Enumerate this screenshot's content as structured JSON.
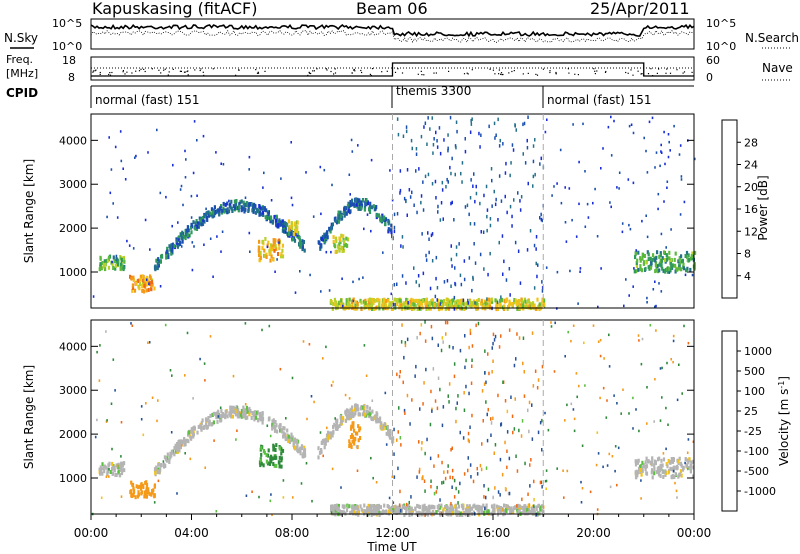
{
  "header": {
    "station": "Kapuskasing (fitACF)",
    "beam": "Beam 06",
    "date": "25/Apr/2011"
  },
  "noise_panel": {
    "left_label": "N.Sky",
    "right_label": "N.Search",
    "y_ticks": [
      "10^5",
      "10^0"
    ]
  },
  "freq_panel": {
    "left_label_1": "Freq.",
    "left_label_2": "[MHz]",
    "right_label": "Nave",
    "left_ticks": [
      "18",
      "8"
    ],
    "right_ticks": [
      "60",
      "0"
    ]
  },
  "cpid_panel": {
    "left_label": "CPID",
    "segments": [
      {
        "label": "normal (fast) 151",
        "start_h": 0,
        "end_h": 12
      },
      {
        "label": "themis 3300",
        "start_h": 12,
        "end_h": 18
      },
      {
        "label": "normal (fast) 151",
        "start_h": 18,
        "end_h": 24
      }
    ]
  },
  "colorbars": {
    "power": {
      "label": "Power [dB]",
      "ticks": [
        "4",
        "8",
        "12",
        "16",
        "20",
        "24",
        "28"
      ],
      "colors": [
        "#1a2ed8",
        "#1a4fb0",
        "#23708a",
        "#2f9a5a",
        "#5db93b",
        "#b8d02a",
        "#f2c21a",
        "#f49a16",
        "#ec6a14",
        "#e03414",
        "#d40a0a"
      ]
    },
    "velocity": {
      "label": "Velocity [m s",
      "label_sup": "-1",
      "label_close": "]",
      "ticks": [
        "1000",
        "500",
        "100",
        "25",
        "-25",
        "-100",
        "-500",
        "-1000"
      ],
      "colors": [
        "#1a2ed8",
        "#24519a",
        "#2e8a3a",
        "#5bc040",
        "#b4b4b4",
        "#f2c21a",
        "#f59a18",
        "#f06a14",
        "#e23a14",
        "#d80a0a"
      ]
    }
  },
  "x_axis": {
    "label": "Time UT",
    "tick_labels": [
      "00:00",
      "04:00",
      "08:00",
      "12:00",
      "16:00",
      "20:00",
      "00:00"
    ]
  },
  "chart_data": [
    {
      "type": "heatmap",
      "title": "Power",
      "ylabel": "Slant Range [km]",
      "xlabel": "Time UT",
      "xlim": [
        0,
        24
      ],
      "ylim": [
        180,
        4600
      ],
      "y_ticks": [
        1000,
        2000,
        3000,
        4000
      ],
      "clim": [
        0,
        30
      ],
      "colorbar_label": "Power [dB]",
      "dashed_time_markers": [
        12,
        18
      ],
      "features": [
        {
          "desc": "band",
          "t0": 0.3,
          "t1": 1.3,
          "r0": 1100,
          "r1": 1400,
          "v": 12
        },
        {
          "desc": "blob",
          "t0": 1.5,
          "t1": 2.5,
          "r0": 600,
          "r1": 950,
          "v": 20
        },
        {
          "desc": "arc",
          "t0": 2.5,
          "t1": 8.5,
          "r0": 1150,
          "r1": 2550,
          "v": 6
        },
        {
          "desc": "blob",
          "t0": 6.6,
          "t1": 7.6,
          "r0": 1300,
          "r1": 1800,
          "v": 18
        },
        {
          "desc": "blob",
          "t0": 7.8,
          "t1": 8.2,
          "r0": 1900,
          "r1": 2200,
          "v": 16
        },
        {
          "desc": "arc",
          "t0": 9.0,
          "t1": 12.0,
          "r0": 1600,
          "r1": 2600,
          "v": 6
        },
        {
          "desc": "blob",
          "t0": 9.6,
          "t1": 10.2,
          "r0": 1500,
          "r1": 1900,
          "v": 14
        },
        {
          "desc": "ground",
          "t0": 9.5,
          "t1": 18.0,
          "r0": 200,
          "r1": 420,
          "v": 16
        },
        {
          "desc": "band",
          "t0": 21.6,
          "t1": 24.0,
          "r0": 1050,
          "r1": 1500,
          "v": 10
        }
      ]
    },
    {
      "type": "heatmap",
      "title": "Velocity",
      "ylabel": "Slant Range [km]",
      "xlabel": "Time UT",
      "xlim": [
        0,
        24
      ],
      "ylim": [
        180,
        4600
      ],
      "y_ticks": [
        1000,
        2000,
        3000,
        4000
      ],
      "clim": [
        -1000,
        1000
      ],
      "colorbar_label": "Velocity [m s-1]",
      "dashed_time_markers": [
        12,
        18
      ],
      "features": [
        {
          "desc": "band",
          "t0": 0.3,
          "t1": 1.3,
          "r0": 1100,
          "r1": 1400,
          "v": 0
        },
        {
          "desc": "blob",
          "t0": 1.5,
          "t1": 2.5,
          "r0": 600,
          "r1": 950,
          "v": -150
        },
        {
          "desc": "arc",
          "t0": 2.5,
          "t1": 8.5,
          "r0": 1150,
          "r1": 2550,
          "v": 0
        },
        {
          "desc": "blob",
          "t0": 6.6,
          "t1": 7.6,
          "r0": 1300,
          "r1": 1800,
          "v": 80
        },
        {
          "desc": "arc",
          "t0": 9.0,
          "t1": 12.0,
          "r0": 1600,
          "r1": 2600,
          "v": 0
        },
        {
          "desc": "blob",
          "t0": 10.2,
          "t1": 10.7,
          "r0": 1700,
          "r1": 2300,
          "v": -200
        },
        {
          "desc": "ground",
          "t0": 9.5,
          "t1": 18.0,
          "r0": 200,
          "r1": 420,
          "v": 0
        },
        {
          "desc": "band",
          "t0": 21.6,
          "t1": 24.0,
          "r0": 1050,
          "r1": 1500,
          "v": 0
        }
      ]
    }
  ]
}
